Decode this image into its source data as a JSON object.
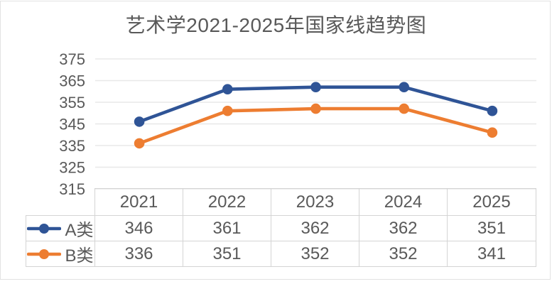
{
  "page": {
    "title": "艺术学2021-2025年国家线趋势图"
  },
  "colors": {
    "series_a_blue": "#2F5496",
    "series_b_orange": "#ED7D31",
    "text_gray": "#595959",
    "gridline": "#E8E8E8",
    "table_border": "#D4D4D4",
    "frame_border": "#E2E2E2"
  },
  "chart_data": {
    "type": "line",
    "title": "艺术学2021-2025年国家线趋势图",
    "categories": [
      "2021",
      "2022",
      "2023",
      "2024",
      "2025"
    ],
    "series": [
      {
        "name": "A类",
        "color": "#2F5496",
        "values": [
          346,
          361,
          362,
          362,
          351
        ]
      },
      {
        "name": "B类",
        "color": "#ED7D31",
        "values": [
          336,
          351,
          352,
          352,
          341
        ]
      }
    ],
    "xlabel": "",
    "ylabel": "",
    "ylim": [
      315,
      375
    ],
    "yticks": [
      375,
      365,
      355,
      345,
      335,
      325,
      315
    ],
    "grid": true,
    "marker": "circle",
    "legend_position": "table-left",
    "data_table_shown": true
  }
}
